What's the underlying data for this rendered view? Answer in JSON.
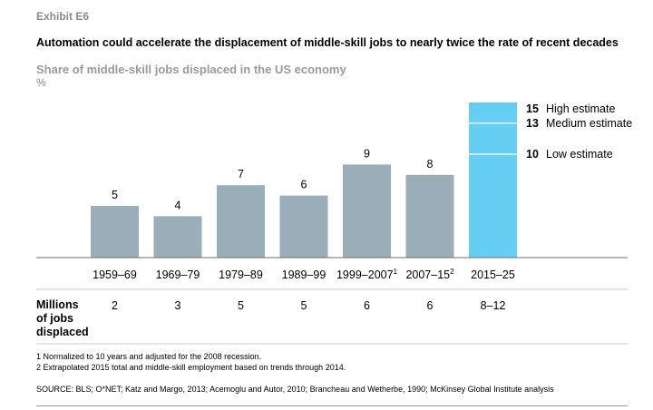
{
  "exhibit_label": "Exhibit E6",
  "headline": "Automation could accelerate the displacement of middle-skill jobs to nearly twice the rate of recent decades",
  "chart_data": {
    "type": "bar",
    "title": "Share of middle-skill jobs displaced in the US economy",
    "unit": "%",
    "categories": [
      {
        "label": "1959–69",
        "sup": ""
      },
      {
        "label": "1969–79",
        "sup": ""
      },
      {
        "label": "1979–89",
        "sup": ""
      },
      {
        "label": "1989–99",
        "sup": ""
      },
      {
        "label": "1999–2007",
        "sup": "1"
      },
      {
        "label": "2007–15",
        "sup": "2"
      },
      {
        "label": "2015–25",
        "sup": ""
      }
    ],
    "values": [
      5,
      4,
      7,
      6,
      9,
      8,
      15
    ],
    "value_labels": [
      "5",
      "4",
      "7",
      "6",
      "9",
      "8",
      ""
    ],
    "estimates": [
      {
        "value": 15,
        "label": "High estimate"
      },
      {
        "value": 13,
        "label": "Medium estimate"
      },
      {
        "value": 10,
        "label": "Low estimate"
      }
    ],
    "ylim": [
      0,
      15
    ],
    "colors": {
      "historical": "#9aaeb9",
      "projection": "#66cdf3"
    },
    "grid": false
  },
  "jobs_row": {
    "label_lines": [
      "Millions",
      "of jobs",
      "displaced"
    ],
    "values": [
      "2",
      "3",
      "5",
      "5",
      "6",
      "6",
      "8–12"
    ]
  },
  "footnotes": [
    "1  Normalized to 10 years and adjusted for the 2008 recession.",
    "2  Extrapolated 2015 total and middle-skill employment based on trends through 2014."
  ],
  "source": "SOURCE:  BLS; O*NET; Katz and Margo, 2013; Acemoglu and Autor, 2010; Brancheau and Wetherbe, 1990; McKinsey Global Institute analysis"
}
